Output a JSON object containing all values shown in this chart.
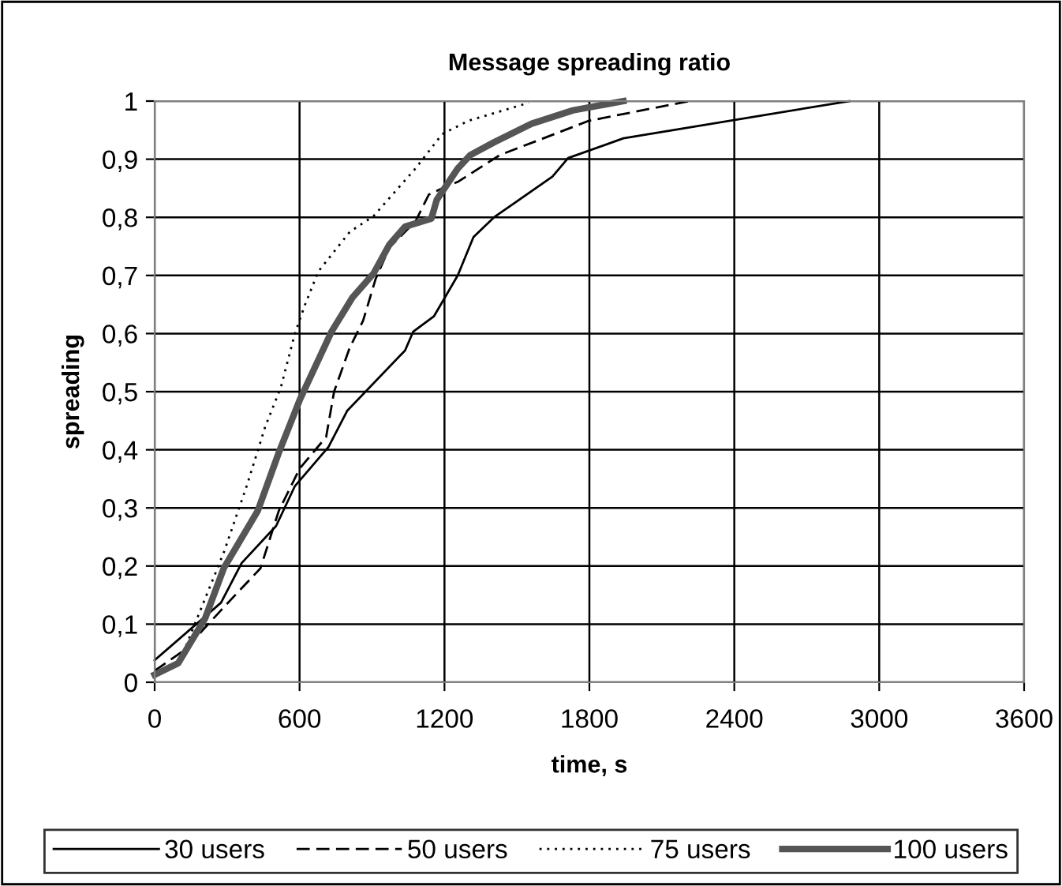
{
  "chart_data": {
    "type": "line",
    "title": "Message spreading ratio",
    "xlabel": "time, s",
    "ylabel": "spreading",
    "xlim": [
      0,
      3600
    ],
    "xticks": [
      0,
      600,
      1200,
      1800,
      2400,
      3000,
      3600
    ],
    "ylim": [
      0,
      1
    ],
    "yticks": [
      0,
      {
        "value": 0.1,
        "label": "0,1"
      },
      {
        "value": 0.2,
        "label": "0,2"
      },
      {
        "value": 0.3,
        "label": "0,3"
      },
      {
        "value": 0.4,
        "label": "0,4"
      },
      {
        "value": 0.5,
        "label": "0,5"
      },
      {
        "value": 0.6,
        "label": "0,6"
      },
      {
        "value": 0.7,
        "label": "0,7"
      },
      {
        "value": 0.8,
        "label": "0,8"
      },
      {
        "value": 0.9,
        "label": "0,9"
      },
      1
    ],
    "grid": true,
    "legend": "bottom",
    "marker": "none",
    "series": [
      {
        "name": "30 users",
        "color": "#000000",
        "line_style": "solid",
        "x": [
          0,
          275,
          360,
          503,
          580,
          720,
          797,
          1037,
          1070,
          1157,
          1255,
          1320,
          1405,
          1647,
          1712,
          1941,
          2876
        ],
        "values": [
          0.038,
          0.137,
          0.205,
          0.269,
          0.337,
          0.405,
          0.467,
          0.571,
          0.603,
          0.63,
          0.7,
          0.766,
          0.8,
          0.87,
          0.902,
          0.936,
          1.0
        ]
      },
      {
        "name": "50 users",
        "color": "#000000",
        "line_style": "dashed",
        "x": [
          0,
          122,
          295,
          438,
          514,
          601,
          710,
          743,
          808,
          863,
          915,
          972,
          1080,
          1135,
          1200,
          1255,
          1429,
          1797,
          2214
        ],
        "values": [
          0.02,
          0.055,
          0.133,
          0.196,
          0.295,
          0.368,
          0.422,
          0.5,
          0.576,
          0.622,
          0.694,
          0.748,
          0.793,
          0.839,
          0.852,
          0.861,
          0.907,
          0.966,
          1.0
        ]
      },
      {
        "name": "75 users",
        "color": "#000000",
        "line_style": "dotted",
        "x": [
          0,
          98,
          286,
          383,
          458,
          523,
          580,
          622,
          678,
          808,
          906,
          1080,
          1190,
          1298,
          1549
        ],
        "values": [
          0.015,
          0.03,
          0.223,
          0.34,
          0.44,
          0.508,
          0.599,
          0.649,
          0.707,
          0.775,
          0.802,
          0.884,
          0.943,
          0.966,
          0.997
        ]
      },
      {
        "name": "100 users",
        "color": "#555555",
        "line_style": "solid",
        "x": [
          0,
          98,
          209,
          286,
          427,
          514,
          601,
          732,
          819,
          906,
          972,
          1037,
          1146,
          1168,
          1255,
          1307,
          1405,
          1560,
          1732,
          1941
        ],
        "values": [
          0.013,
          0.033,
          0.11,
          0.196,
          0.295,
          0.395,
          0.486,
          0.603,
          0.662,
          0.703,
          0.753,
          0.784,
          0.798,
          0.83,
          0.884,
          0.907,
          0.929,
          0.961,
          0.984,
          1.0
        ]
      }
    ]
  }
}
